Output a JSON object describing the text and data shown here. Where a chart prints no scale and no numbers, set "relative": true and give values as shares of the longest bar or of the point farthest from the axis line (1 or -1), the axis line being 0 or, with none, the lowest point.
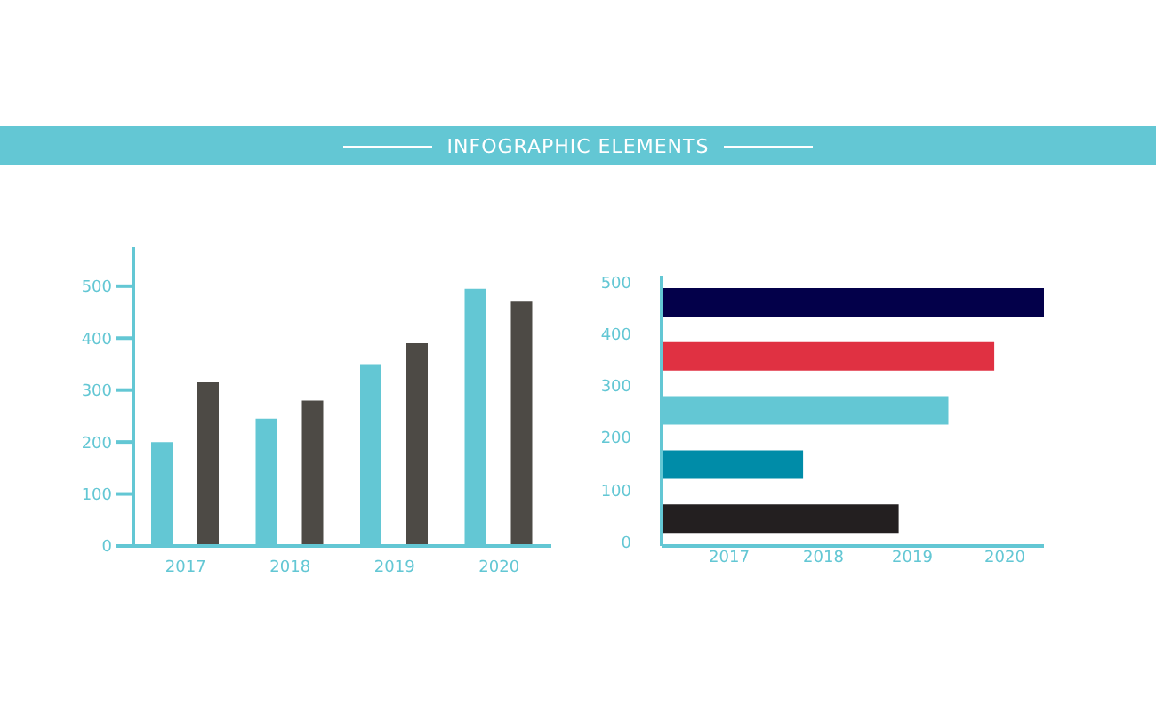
{
  "chart_data": [
    {
      "type": "bar",
      "title": "INFOGRAPHIC ELEMENTS",
      "categories": [
        "2017",
        "2018",
        "2019",
        "2020"
      ],
      "series": [
        {
          "color": "#63c7d4",
          "values": [
            200,
            245,
            350,
            495
          ]
        },
        {
          "color": "#4d4a45",
          "values": [
            315,
            280,
            390,
            470
          ]
        }
      ],
      "ylim": [
        0,
        575
      ],
      "yticks": [
        0,
        100,
        200,
        300,
        400,
        500
      ],
      "grid": false,
      "legend": false
    },
    {
      "type": "bar",
      "orientation": "horizontal",
      "relative": true,
      "categories": [
        null,
        null,
        null,
        null,
        null
      ],
      "values": [
        1,
        0.87,
        0.75,
        0.37,
        0.62
      ],
      "colors": [
        "#03004a",
        "#e03142",
        "#63c7d4",
        "#008ca8",
        "#231f20"
      ],
      "annotations": [
        "0",
        "100",
        "200",
        "300",
        "400",
        "500",
        "2017",
        "2018",
        "2019",
        "2020"
      ],
      "grid": false,
      "legend": false
    }
  ]
}
